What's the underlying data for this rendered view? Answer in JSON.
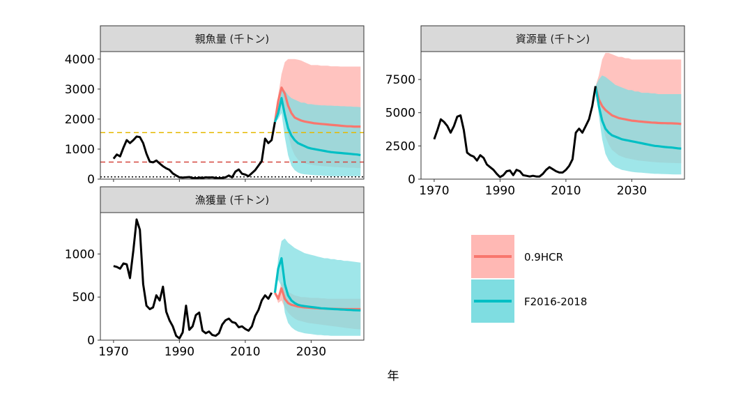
{
  "figure": {
    "xlabel": "年"
  },
  "colors": {
    "observed": "#000000",
    "hcr": "#F8766D",
    "fcur": "#00BFC4",
    "hcr_band": "#FFB8B4",
    "fcur_band": "#7FDDE1",
    "strip_fill": "#D9D9D9",
    "target_line": "#E6B800",
    "limit_line": "#D6453D",
    "ban_line": "#000000"
  },
  "legend": {
    "items": [
      {
        "label": "0.9HCR",
        "color": "#F8766D"
      },
      {
        "label": "F2016-2018",
        "color": "#00BFC4"
      }
    ]
  },
  "chart_data": [
    {
      "type": "line",
      "title": "親魚量 (千トン)",
      "xlim": [
        1966,
        2046
      ],
      "ylim": [
        0,
        4250
      ],
      "yticks": [
        0,
        1000,
        2000,
        3000,
        4000
      ],
      "xticks": [
        1970,
        1990,
        2010,
        2030
      ],
      "show_xticks": false,
      "reference_lines": [
        {
          "name": "target",
          "y": 1550,
          "style": "dashed",
          "color": "#E6B800"
        },
        {
          "name": "limit",
          "y": 570,
          "style": "dashed",
          "color": "#D6453D"
        },
        {
          "name": "ban",
          "y": 75,
          "style": "dotted",
          "color": "#000000"
        }
      ],
      "observed": {
        "x": [
          1970,
          1971,
          1972,
          1973,
          1974,
          1975,
          1976,
          1977,
          1978,
          1979,
          1980,
          1981,
          1982,
          1983,
          1984,
          1985,
          1986,
          1987,
          1988,
          1989,
          1990,
          1991,
          1992,
          1993,
          1994,
          1995,
          1996,
          1997,
          1998,
          1999,
          2000,
          2001,
          2002,
          2003,
          2004,
          2005,
          2006,
          2007,
          2008,
          2009,
          2010,
          2011,
          2012,
          2013,
          2014,
          2015,
          2016,
          2017,
          2018,
          2019
        ],
        "y": [
          680,
          820,
          760,
          1050,
          1300,
          1200,
          1300,
          1420,
          1400,
          1200,
          850,
          580,
          560,
          620,
          520,
          430,
          360,
          310,
          190,
          120,
          60,
          50,
          60,
          70,
          40,
          30,
          50,
          40,
          60,
          50,
          60,
          40,
          30,
          40,
          60,
          120,
          60,
          250,
          320,
          180,
          150,
          100,
          200,
          300,
          450,
          600,
          1350,
          1200,
          1300,
          1900
        ]
      },
      "series": [
        {
          "name": "0.9HCR",
          "x": [
            2019,
            2020,
            2021,
            2022,
            2023,
            2024,
            2025,
            2026,
            2027,
            2028,
            2029,
            2030,
            2031,
            2032,
            2033,
            2034,
            2035,
            2036,
            2037,
            2038,
            2039,
            2040,
            2041,
            2042,
            2043,
            2044,
            2045
          ],
          "median": [
            1900,
            2600,
            3050,
            2850,
            2450,
            2200,
            2050,
            2000,
            1950,
            1920,
            1900,
            1880,
            1860,
            1850,
            1840,
            1830,
            1820,
            1810,
            1800,
            1790,
            1780,
            1770,
            1760,
            1760,
            1750,
            1750,
            1750
          ],
          "lower": [
            1900,
            2400,
            2500,
            2100,
            1500,
            1050,
            800,
            650,
            580,
            530,
            500,
            480,
            460,
            450,
            440,
            430,
            420,
            410,
            400,
            400,
            390,
            390,
            380,
            380,
            380,
            370,
            370
          ],
          "upper": [
            1900,
            2800,
            3500,
            3900,
            4000,
            4000,
            4000,
            3980,
            3950,
            3900,
            3850,
            3800,
            3800,
            3800,
            3780,
            3780,
            3780,
            3760,
            3760,
            3760,
            3750,
            3750,
            3750,
            3750,
            3750,
            3750,
            3750
          ]
        },
        {
          "name": "F2016-2018",
          "x": [
            2019,
            2020,
            2021,
            2022,
            2023,
            2024,
            2025,
            2026,
            2027,
            2028,
            2029,
            2030,
            2031,
            2032,
            2033,
            2034,
            2035,
            2036,
            2037,
            2038,
            2039,
            2040,
            2041,
            2042,
            2043,
            2044,
            2045
          ],
          "median": [
            1900,
            2200,
            2700,
            2150,
            1700,
            1450,
            1300,
            1200,
            1150,
            1100,
            1050,
            1020,
            1000,
            980,
            960,
            940,
            920,
            900,
            890,
            880,
            870,
            860,
            850,
            840,
            830,
            820,
            800
          ],
          "lower": [
            1900,
            2000,
            2200,
            1400,
            800,
            450,
            300,
            220,
            180,
            160,
            150,
            140,
            130,
            120,
            120,
            110,
            110,
            100,
            100,
            100,
            100,
            100,
            100,
            100,
            100,
            100,
            100
          ],
          "upper": [
            1900,
            2350,
            3000,
            2950,
            2800,
            2700,
            2650,
            2600,
            2550,
            2550,
            2500,
            2500,
            2480,
            2470,
            2460,
            2460,
            2450,
            2450,
            2440,
            2440,
            2430,
            2430,
            2420,
            2420,
            2410,
            2410,
            2400
          ]
        }
      ]
    },
    {
      "type": "line",
      "title": "資源量 (千トン)",
      "xlim": [
        1966,
        2046
      ],
      "ylim": [
        0,
        9600
      ],
      "yticks": [
        0,
        2500,
        5000,
        7500
      ],
      "xticks": [
        1970,
        1990,
        2010,
        2030
      ],
      "show_xticks": true,
      "observed": {
        "x": [
          1970,
          1971,
          1972,
          1973,
          1974,
          1975,
          1976,
          1977,
          1978,
          1979,
          1980,
          1981,
          1982,
          1983,
          1984,
          1985,
          1986,
          1987,
          1988,
          1989,
          1990,
          1991,
          1992,
          1993,
          1994,
          1995,
          1996,
          1997,
          1998,
          1999,
          2000,
          2001,
          2002,
          2003,
          2004,
          2005,
          2006,
          2007,
          2008,
          2009,
          2010,
          2011,
          2012,
          2013,
          2014,
          2015,
          2016,
          2017,
          2018,
          2019
        ],
        "y": [
          3000,
          3700,
          4500,
          4300,
          4000,
          3500,
          4000,
          4700,
          4800,
          3700,
          2000,
          1800,
          1700,
          1400,
          1800,
          1600,
          1100,
          900,
          700,
          400,
          150,
          300,
          600,
          650,
          300,
          700,
          600,
          300,
          250,
          200,
          250,
          200,
          200,
          400,
          700,
          900,
          750,
          600,
          500,
          500,
          700,
          1000,
          1500,
          3500,
          3800,
          3500,
          4000,
          4500,
          5500,
          7000
        ]
      },
      "series": [
        {
          "name": "0.9HCR",
          "x": [
            2019,
            2020,
            2021,
            2022,
            2023,
            2024,
            2025,
            2026,
            2027,
            2028,
            2029,
            2030,
            2031,
            2032,
            2033,
            2034,
            2035,
            2036,
            2037,
            2038,
            2039,
            2040,
            2041,
            2042,
            2043,
            2044,
            2045
          ],
          "median": [
            7000,
            6000,
            5500,
            5200,
            5000,
            4800,
            4700,
            4600,
            4550,
            4500,
            4450,
            4400,
            4380,
            4350,
            4330,
            4300,
            4280,
            4260,
            4250,
            4230,
            4220,
            4210,
            4200,
            4200,
            4190,
            4180,
            4150
          ],
          "lower": [
            7000,
            5400,
            4200,
            3200,
            2600,
            2200,
            2000,
            1800,
            1700,
            1600,
            1550,
            1500,
            1450,
            1400,
            1380,
            1350,
            1320,
            1300,
            1280,
            1260,
            1250,
            1240,
            1230,
            1220,
            1210,
            1200,
            1200
          ],
          "upper": [
            7000,
            7800,
            9000,
            9500,
            9500,
            9400,
            9300,
            9200,
            9200,
            9100,
            9100,
            9000,
            9000,
            9000,
            9000,
            9000,
            9000,
            9000,
            9000,
            9000,
            9000,
            9000,
            9000,
            9000,
            9000,
            9000,
            9000
          ]
        },
        {
          "name": "F2016-2018",
          "x": [
            2019,
            2020,
            2021,
            2022,
            2023,
            2024,
            2025,
            2026,
            2027,
            2028,
            2029,
            2030,
            2031,
            2032,
            2033,
            2034,
            2035,
            2036,
            2037,
            2038,
            2039,
            2040,
            2041,
            2042,
            2043,
            2044,
            2045
          ],
          "median": [
            7000,
            5500,
            4400,
            3800,
            3500,
            3300,
            3200,
            3100,
            3000,
            2950,
            2900,
            2850,
            2800,
            2750,
            2700,
            2650,
            2600,
            2550,
            2500,
            2480,
            2450,
            2420,
            2400,
            2380,
            2350,
            2320,
            2300
          ],
          "lower": [
            7000,
            4800,
            3000,
            1900,
            1400,
            1100,
            900,
            800,
            700,
            650,
            600,
            550,
            520,
            500,
            480,
            460,
            440,
            420,
            400,
            400,
            390,
            380,
            370,
            360,
            350,
            350,
            350
          ],
          "upper": [
            7000,
            7500,
            7800,
            7700,
            7500,
            7300,
            7100,
            7000,
            6900,
            6800,
            6700,
            6700,
            6600,
            6600,
            6500,
            6500,
            6500,
            6450,
            6450,
            6400,
            6400,
            6400,
            6400,
            6400,
            6400,
            6400,
            6400
          ]
        }
      ]
    },
    {
      "type": "line",
      "title": "漁獲量 (千トン)",
      "xlim": [
        1966,
        2046
      ],
      "ylim": [
        0,
        1480
      ],
      "yticks": [
        0,
        500,
        1000
      ],
      "xticks": [
        1970,
        1990,
        2010,
        2030
      ],
      "show_xticks": true,
      "observed": {
        "x": [
          1970,
          1971,
          1972,
          1973,
          1974,
          1975,
          1976,
          1977,
          1978,
          1979,
          1980,
          1981,
          1982,
          1983,
          1984,
          1985,
          1986,
          1987,
          1988,
          1989,
          1990,
          1991,
          1992,
          1993,
          1994,
          1995,
          1996,
          1997,
          1998,
          1999,
          2000,
          2001,
          2002,
          2003,
          2004,
          2005,
          2006,
          2007,
          2008,
          2009,
          2010,
          2011,
          2012,
          2013,
          2014,
          2015,
          2016,
          2017,
          2018
        ],
        "y": [
          860,
          850,
          830,
          890,
          880,
          720,
          1040,
          1400,
          1280,
          650,
          400,
          360,
          380,
          520,
          460,
          620,
          330,
          230,
          160,
          50,
          20,
          90,
          400,
          120,
          160,
          290,
          320,
          110,
          80,
          100,
          60,
          50,
          80,
          180,
          230,
          250,
          210,
          200,
          150,
          160,
          130,
          110,
          160,
          280,
          350,
          460,
          520,
          480,
          550
        ]
      },
      "series": [
        {
          "name": "0.9HCR",
          "x": [
            2019,
            2020,
            2021,
            2022,
            2023,
            2024,
            2025,
            2026,
            2027,
            2028,
            2029,
            2030,
            2031,
            2032,
            2033,
            2034,
            2035,
            2036,
            2037,
            2038,
            2039,
            2040,
            2041,
            2042,
            2043,
            2044,
            2045
          ],
          "median": [
            550,
            480,
            600,
            480,
            430,
            410,
            400,
            390,
            385,
            380,
            378,
            375,
            372,
            370,
            368,
            366,
            365,
            364,
            363,
            362,
            361,
            360,
            360,
            360,
            360,
            360,
            360
          ],
          "lower": [
            550,
            430,
            460,
            380,
            320,
            280,
            250,
            230,
            220,
            210,
            200,
            195,
            190,
            185,
            180,
            175,
            170,
            165,
            160,
            155,
            150,
            145,
            140,
            135,
            130,
            128,
            125
          ],
          "upper": [
            550,
            520,
            680,
            620,
            560,
            540,
            520,
            510,
            500,
            500,
            495,
            490,
            490,
            490,
            485,
            485,
            480,
            480,
            480,
            480,
            480,
            480,
            480,
            480,
            480,
            480,
            480
          ]
        },
        {
          "name": "F2016-2018",
          "x": [
            2019,
            2020,
            2021,
            2022,
            2023,
            2024,
            2025,
            2026,
            2027,
            2028,
            2029,
            2030,
            2031,
            2032,
            2033,
            2034,
            2035,
            2036,
            2037,
            2038,
            2039,
            2040,
            2041,
            2042,
            2043,
            2044,
            2045
          ],
          "median": [
            550,
            830,
            950,
            650,
            520,
            460,
            430,
            410,
            400,
            395,
            390,
            385,
            380,
            375,
            370,
            368,
            365,
            362,
            360,
            358,
            356,
            354,
            352,
            350,
            348,
            346,
            345
          ],
          "lower": [
            550,
            700,
            620,
            320,
            200,
            150,
            120,
            100,
            90,
            80,
            75,
            70,
            65,
            60,
            60,
            55,
            55,
            50,
            50,
            50,
            50,
            50,
            50,
            50,
            50,
            50,
            50
          ],
          "upper": [
            550,
            950,
            1150,
            1180,
            1130,
            1100,
            1070,
            1050,
            1030,
            1010,
            1000,
            990,
            980,
            970,
            960,
            950,
            950,
            940,
            940,
            930,
            930,
            920,
            920,
            915,
            910,
            905,
            900
          ]
        }
      ]
    }
  ]
}
